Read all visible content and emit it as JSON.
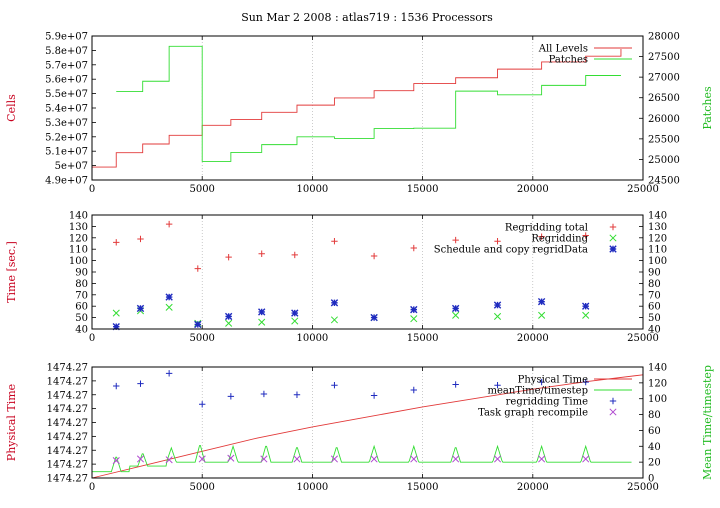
{
  "figure_title": "Sun Mar 2 2008 : atlas719 : 1536 Processors",
  "colors": {
    "red": "#e23a3a",
    "green": "#33dd33",
    "blue": "#1f2bbf",
    "purple": "#b04ad0",
    "axis_red": "#c8001e",
    "axis_green": "#22bb22",
    "grid": "#aaaaaa"
  },
  "chart_data": [
    {
      "type": "line",
      "ylabel": "Cells",
      "y2label": "Patches",
      "xlim": [
        0,
        25000
      ],
      "ylim": [
        49000000,
        59000000
      ],
      "y2lim": [
        24500,
        28000
      ],
      "xticks": [
        "0",
        "5000",
        "10000",
        "15000",
        "20000",
        "25000"
      ],
      "yticks": [
        "4.9e+07",
        "5e+07",
        "5.1e+07",
        "5.2e+07",
        "5.3e+07",
        "5.4e+07",
        "5.5e+07",
        "5.6e+07",
        "5.7e+07",
        "5.8e+07",
        "5.9e+07"
      ],
      "y2ticks": [
        "24500",
        "25000",
        "25500",
        "26000",
        "26500",
        "27000",
        "27500",
        "28000"
      ],
      "legend": [
        "All Levels",
        "Patches"
      ],
      "series": [
        {
          "name": "All Levels",
          "axis": "left",
          "style": "step",
          "x": [
            0,
            1100,
            2300,
            3500,
            5000,
            6300,
            7700,
            9300,
            11000,
            12800,
            14600,
            16500,
            18400,
            20400,
            22400,
            24000
          ],
          "y": [
            49900000,
            50900000,
            51500000,
            52100000,
            52800000,
            53200000,
            53700000,
            54200000,
            54700000,
            55200000,
            55700000,
            56100000,
            56700000,
            57200000,
            57600000,
            58100000
          ]
        },
        {
          "name": "Patches",
          "axis": "right",
          "style": "step",
          "x": [
            1100,
            2300,
            3500,
            5000,
            6300,
            7700,
            9300,
            11000,
            12800,
            14600,
            16500,
            18400,
            20400,
            22400,
            24000
          ],
          "y": [
            26650,
            26900,
            27750,
            24950,
            25170,
            25360,
            25550,
            25510,
            25750,
            25760,
            26660,
            26570,
            26800,
            27040,
            27040
          ]
        }
      ]
    },
    {
      "type": "scatter",
      "ylabel": "Time [sec.]",
      "xlim": [
        0,
        25000
      ],
      "ylim": [
        40,
        140
      ],
      "y2lim": [
        40,
        140
      ],
      "xticks": [
        "0",
        "5000",
        "10000",
        "15000",
        "20000",
        "25000"
      ],
      "yticks": [
        "40",
        "50",
        "60",
        "70",
        "80",
        "90",
        "100",
        "110",
        "120",
        "130",
        "140"
      ],
      "y2ticks": [
        "40",
        "50",
        "60",
        "70",
        "80",
        "90",
        "100",
        "110",
        "120",
        "130",
        "140"
      ],
      "legend": [
        "Regridding total",
        "Regridding",
        "Schedule and copy regridData"
      ],
      "series": [
        {
          "name": "Regridding total",
          "marker": "plus",
          "x": [
            1100,
            2200,
            3500,
            4800,
            6200,
            7700,
            9200,
            11000,
            12800,
            14600,
            16500,
            18400,
            20400,
            22400
          ],
          "y": [
            116,
            119,
            132,
            93,
            103,
            106,
            105,
            117,
            104,
            111,
            118,
            117,
            121,
            122
          ]
        },
        {
          "name": "Regridding",
          "marker": "x",
          "x": [
            1100,
            2200,
            3500,
            4800,
            6200,
            7700,
            9200,
            11000,
            12800,
            14600,
            16500,
            18400,
            20400,
            22400
          ],
          "y": [
            54,
            56,
            59,
            45,
            45,
            46,
            47,
            48,
            50,
            49,
            52,
            51,
            52,
            52
          ]
        },
        {
          "name": "Schedule and copy regridData",
          "marker": "star",
          "x": [
            1100,
            2200,
            3500,
            4800,
            6200,
            7700,
            9200,
            11000,
            12800,
            14600,
            16500,
            18400,
            20400,
            22400
          ],
          "y": [
            42,
            58,
            68,
            44,
            51,
            55,
            54,
            63,
            50,
            57,
            58,
            61,
            64,
            60
          ]
        }
      ]
    },
    {
      "type": "line",
      "ylabel": "Physical Time",
      "y2label": "Mean Time/timestep",
      "xlim": [
        0,
        25000
      ],
      "ylim": [
        0,
        1
      ],
      "y2lim": [
        0,
        140
      ],
      "xticks": [
        "0",
        "5000",
        "10000",
        "15000",
        "20000",
        "25000"
      ],
      "yticks": [
        "1474.27",
        "1474.27",
        "1474.27",
        "1474.27",
        "1474.27",
        "1474.27",
        "1474.27",
        "1474.27",
        "1474.27"
      ],
      "y2ticks": [
        "0",
        "20",
        "40",
        "60",
        "80",
        "100",
        "120",
        "140"
      ],
      "legend": [
        "Physical Time",
        "meanTime/timestep",
        "regridding Time",
        "Task graph recompile"
      ],
      "series": [
        {
          "name": "Physical Time",
          "axis": "left",
          "x": [
            0,
            2500,
            5000,
            7500,
            10000,
            12500,
            15000,
            17500,
            20000,
            22500,
            25000
          ],
          "y": [
            0.0,
            0.12,
            0.24,
            0.36,
            0.46,
            0.55,
            0.64,
            0.72,
            0.8,
            0.87,
            0.93
          ]
        },
        {
          "name": "meanTime/timestep",
          "axis": "right",
          "peaks_x": [
            1100,
            2300,
            3600,
            4900,
            6400,
            7900,
            9300,
            11100,
            12800,
            14600,
            16500,
            18400,
            20400,
            22400
          ],
          "peaks_y": [
            28,
            32,
            38,
            43,
            40,
            42,
            40,
            40,
            40,
            40,
            40,
            40,
            40,
            40
          ],
          "baseline": [
            8,
            15,
            20,
            20,
            20,
            20,
            20,
            20,
            20,
            20,
            20,
            20,
            20,
            20,
            20
          ]
        },
        {
          "name": "regridding Time",
          "axis": "right",
          "marker": "plus",
          "x": [
            1100,
            2200,
            3500,
            5000,
            6300,
            7800,
            9300,
            11000,
            12800,
            14600,
            16500,
            18400,
            20400,
            22400
          ],
          "y": [
            116,
            119,
            132,
            93,
            103,
            106,
            105,
            117,
            104,
            111,
            118,
            117,
            121,
            121
          ]
        },
        {
          "name": "Task graph recompile",
          "axis": "right",
          "marker": "x",
          "x": [
            1100,
            2200,
            3500,
            5000,
            6300,
            7800,
            9300,
            11000,
            12800,
            14600,
            16500,
            18400,
            20400,
            22400
          ],
          "y": [
            22,
            24,
            23,
            24,
            25,
            24,
            24,
            24,
            24,
            24,
            24,
            24,
            24,
            24
          ]
        }
      ]
    }
  ]
}
